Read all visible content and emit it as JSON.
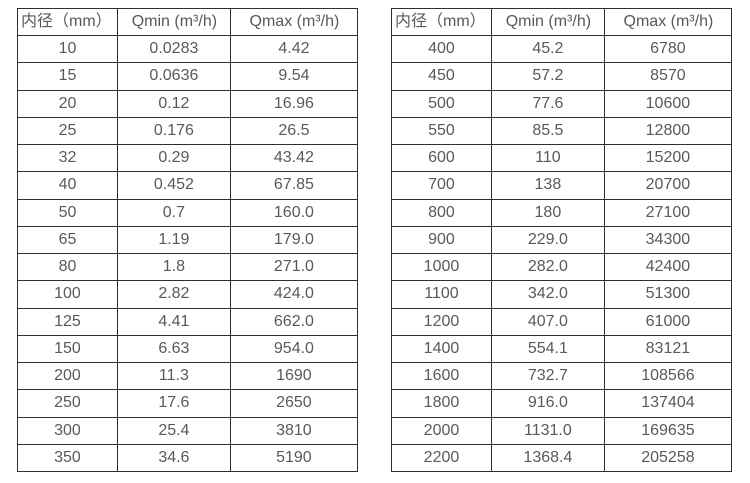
{
  "page": {
    "background": "#ffffff",
    "text_color": "#595959",
    "border_color": "#2f2f2f"
  },
  "tables": [
    {
      "name": "flow-spec-table-small-diameters",
      "headers": [
        "内径（mm）",
        "Qmin (m³/h)",
        "Qmax (m³/h)"
      ],
      "rows": [
        [
          "10",
          "0.0283",
          "4.42"
        ],
        [
          "15",
          "0.0636",
          "9.54"
        ],
        [
          "20",
          "0.12",
          "16.96"
        ],
        [
          "25",
          "0.176",
          "26.5"
        ],
        [
          "32",
          "0.29",
          "43.42"
        ],
        [
          "40",
          "0.452",
          "67.85"
        ],
        [
          "50",
          "0.7",
          "160.0"
        ],
        [
          "65",
          "1.19",
          "179.0"
        ],
        [
          "80",
          "1.8",
          "271.0"
        ],
        [
          "100",
          "2.82",
          "424.0"
        ],
        [
          "125",
          "4.41",
          "662.0"
        ],
        [
          "150",
          "6.63",
          "954.0"
        ],
        [
          "200",
          "11.3",
          "1690"
        ],
        [
          "250",
          "17.6",
          "2650"
        ],
        [
          "300",
          "25.4",
          "3810"
        ],
        [
          "350",
          "34.6",
          "5190"
        ]
      ]
    },
    {
      "name": "flow-spec-table-large-diameters",
      "headers": [
        "内径（mm）",
        "Qmin (m³/h)",
        "Qmax (m³/h)"
      ],
      "rows": [
        [
          "400",
          "45.2",
          "6780"
        ],
        [
          "450",
          "57.2",
          "8570"
        ],
        [
          "500",
          "77.6",
          "10600"
        ],
        [
          "550",
          "85.5",
          "12800"
        ],
        [
          "600",
          "110",
          "15200"
        ],
        [
          "700",
          "138",
          "20700"
        ],
        [
          "800",
          "180",
          "27100"
        ],
        [
          "900",
          "229.0",
          "34300"
        ],
        [
          "1000",
          "282.0",
          "42400"
        ],
        [
          "1100",
          "342.0",
          "51300"
        ],
        [
          "1200",
          "407.0",
          "61000"
        ],
        [
          "1400",
          "554.1",
          "83121"
        ],
        [
          "1600",
          "732.7",
          "108566"
        ],
        [
          "1800",
          "916.0",
          "137404"
        ],
        [
          "2000",
          "1131.0",
          "169635"
        ],
        [
          "2200",
          "1368.4",
          "205258"
        ]
      ]
    }
  ]
}
